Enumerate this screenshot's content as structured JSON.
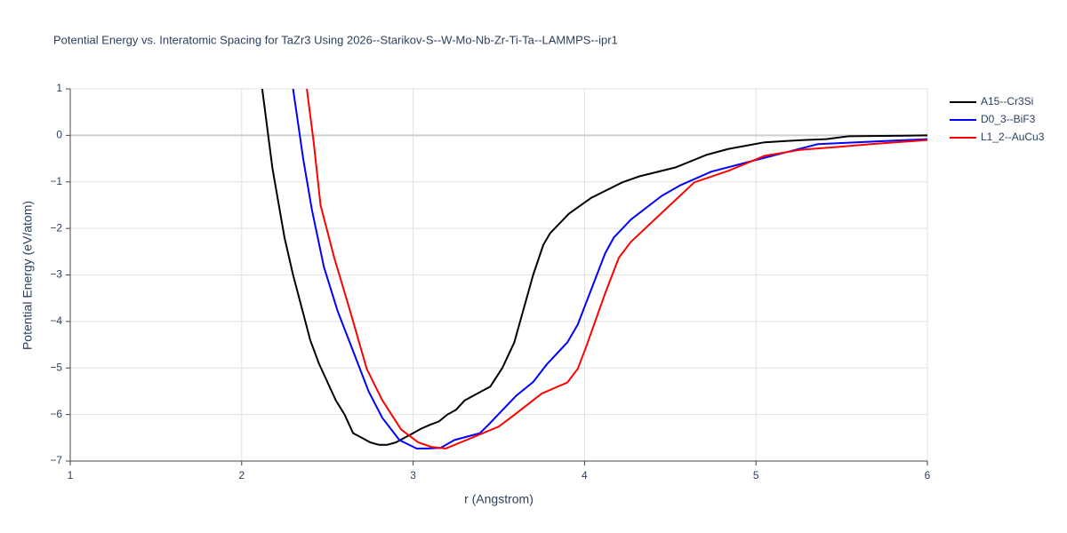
{
  "chart_data": {
    "type": "line",
    "title": "Potential Energy vs. Interatomic Spacing for TaZr3 Using 2026--Starikov-S--W-Mo-Nb-Zr-Ti-Ta--LAMMPS--ipr1",
    "x_label": "r (Angstrom)",
    "y_label": "Potential Energy (eV/atom)",
    "xlim": [
      1,
      6
    ],
    "ylim": [
      -7,
      1
    ],
    "xticks": [
      1,
      2,
      3,
      4,
      5,
      6
    ],
    "yticks": [
      {
        "value": -7,
        "label": "−7"
      },
      {
        "value": -6,
        "label": "−6"
      },
      {
        "value": -5,
        "label": "−5"
      },
      {
        "value": -4,
        "label": "−4"
      },
      {
        "value": -3,
        "label": "−3"
      },
      {
        "value": -2,
        "label": "−2"
      },
      {
        "value": -1,
        "label": "−1"
      },
      0,
      1
    ],
    "grid": true,
    "legend": "right",
    "series": [
      {
        "name": "A15--Cr3Si",
        "color": "#000000",
        "x": [
          2.12,
          2.18,
          2.25,
          2.3,
          2.35,
          2.4,
          2.45,
          2.5,
          2.55,
          2.6,
          2.65,
          2.7,
          2.75,
          2.8,
          2.85,
          2.9,
          2.95,
          3.0,
          3.05,
          3.1,
          3.15,
          3.2,
          3.25,
          3.3,
          3.4,
          3.45,
          3.52,
          3.59,
          3.7,
          3.76,
          3.8,
          3.91,
          4.04,
          4.22,
          4.32,
          4.53,
          4.71,
          4.84,
          5.05,
          5.28,
          5.41,
          5.54,
          6.0
        ],
        "values": [
          1.0,
          -0.72,
          -2.2,
          -3.0,
          -3.7,
          -4.4,
          -4.9,
          -5.3,
          -5.7,
          -6.0,
          -6.4,
          -6.5,
          -6.6,
          -6.65,
          -6.65,
          -6.6,
          -6.5,
          -6.4,
          -6.3,
          -6.22,
          -6.15,
          -6.0,
          -5.9,
          -5.7,
          -5.5,
          -5.4,
          -5.0,
          -4.45,
          -3.0,
          -2.35,
          -2.1,
          -1.68,
          -1.34,
          -1.01,
          -0.88,
          -0.69,
          -0.42,
          -0.29,
          -0.15,
          -0.1,
          -0.08,
          -0.02,
          0.0
        ]
      },
      {
        "name": "D0_3--BiF3",
        "color": "#0000ff",
        "x": [
          2.3,
          2.36,
          2.41,
          2.48,
          2.56,
          2.66,
          2.74,
          2.82,
          2.92,
          3.02,
          3.08,
          3.16,
          3.24,
          3.39,
          3.44,
          3.6,
          3.7,
          3.78,
          3.9,
          3.96,
          4.05,
          4.12,
          4.17,
          4.27,
          4.45,
          4.56,
          4.74,
          5.0,
          5.2,
          5.36,
          6.0
        ],
        "values": [
          1.0,
          -0.53,
          -1.6,
          -2.83,
          -3.78,
          -4.73,
          -5.5,
          -6.07,
          -6.55,
          -6.73,
          -6.73,
          -6.72,
          -6.55,
          -6.4,
          -6.22,
          -5.6,
          -5.3,
          -4.92,
          -4.45,
          -4.07,
          -3.21,
          -2.54,
          -2.2,
          -1.81,
          -1.3,
          -1.07,
          -0.78,
          -0.53,
          -0.34,
          -0.19,
          -0.08
        ]
      },
      {
        "name": "L1_2--AuCu3",
        "color": "#ff0000",
        "x": [
          2.38,
          2.42,
          2.46,
          2.54,
          2.64,
          2.73,
          2.82,
          2.93,
          3.03,
          3.11,
          3.19,
          3.29,
          3.5,
          3.59,
          3.75,
          3.9,
          3.96,
          4.01,
          4.12,
          4.2,
          4.27,
          4.42,
          4.64,
          4.84,
          5.05,
          5.26,
          5.47,
          5.67,
          6.0
        ],
        "values": [
          1.0,
          -0.15,
          -1.5,
          -2.63,
          -3.87,
          -5.02,
          -5.69,
          -6.32,
          -6.6,
          -6.7,
          -6.73,
          -6.58,
          -6.26,
          -6.01,
          -5.55,
          -5.31,
          -5.02,
          -4.54,
          -3.4,
          -2.63,
          -2.29,
          -1.77,
          -1.01,
          -0.76,
          -0.44,
          -0.31,
          -0.25,
          -0.19,
          -0.1
        ]
      }
    ]
  }
}
